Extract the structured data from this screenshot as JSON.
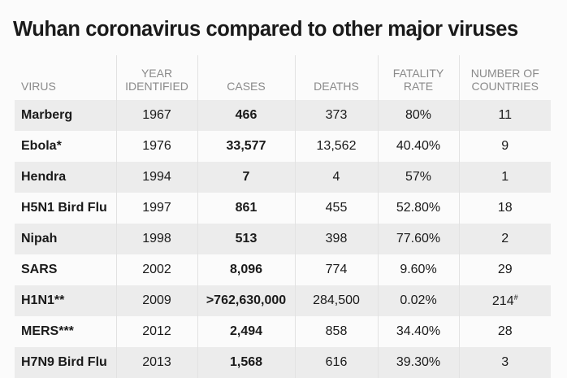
{
  "title": "Wuhan coronavirus compared to other major viruses",
  "chart_data": {
    "type": "table",
    "title": "Wuhan coronavirus compared to other major viruses",
    "columns": [
      "VIRUS",
      "YEAR IDENTIFIED",
      "CASES",
      "DEATHS",
      "FATALITY RATE",
      "NUMBER OF COUNTRIES"
    ],
    "column_lines": [
      [
        "VIRUS"
      ],
      [
        "YEAR",
        "IDENTIFIED"
      ],
      [
        "CASES"
      ],
      [
        "DEATHS"
      ],
      [
        "FATALITY",
        "RATE"
      ],
      [
        "NUMBER OF",
        "COUNTRIES"
      ]
    ],
    "rows": [
      {
        "virus": "Marberg",
        "year": "1967",
        "cases": "466",
        "deaths": "373",
        "rate": "80%",
        "countries": "11",
        "mark": ""
      },
      {
        "virus": "Ebola*",
        "year": "1976",
        "cases": "33,577",
        "deaths": "13,562",
        "rate": "40.40%",
        "countries": "9",
        "mark": ""
      },
      {
        "virus": "Hendra",
        "year": "1994",
        "cases": "7",
        "deaths": "4",
        "rate": "57%",
        "countries": "1",
        "mark": ""
      },
      {
        "virus": "H5N1 Bird Flu",
        "year": "1997",
        "cases": "861",
        "deaths": "455",
        "rate": "52.80%",
        "countries": "18",
        "mark": ""
      },
      {
        "virus": "Nipah",
        "year": "1998",
        "cases": "513",
        "deaths": "398",
        "rate": "77.60%",
        "countries": "2",
        "mark": ""
      },
      {
        "virus": "SARS",
        "year": "2002",
        "cases": "8,096",
        "deaths": "774",
        "rate": "9.60%",
        "countries": "29",
        "mark": ""
      },
      {
        "virus": "H1N1**",
        "year": "2009",
        "cases": ">762,630,000",
        "deaths": "284,500",
        "rate": "0.02%",
        "countries": "214",
        "mark": "#"
      },
      {
        "virus": "MERS***",
        "year": "2012",
        "cases": "2,494",
        "deaths": "858",
        "rate": "34.40%",
        "countries": "28",
        "mark": ""
      },
      {
        "virus": "H7N9 Bird Flu",
        "year": "2013",
        "cases": "1,568",
        "deaths": "616",
        "rate": "39.30%",
        "countries": "3",
        "mark": ""
      }
    ]
  }
}
